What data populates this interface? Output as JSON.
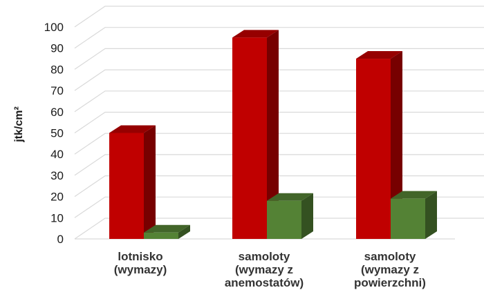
{
  "chart_data": {
    "type": "bar",
    "style": "3d-clustered-column",
    "categories": [
      [
        "lotnisko",
        "(wymazy)"
      ],
      [
        "samoloty",
        "(wymazy z",
        "anemostatów)"
      ],
      [
        "samoloty",
        "(wymazy z",
        "powierzchni)"
      ]
    ],
    "series": [
      {
        "values": [
          50,
          95,
          85
        ],
        "color": "#c00000"
      },
      {
        "values": [
          3,
          18,
          19
        ],
        "color": "#548235"
      }
    ],
    "ylabel": "jtk/cm²",
    "ylim": [
      0,
      100
    ],
    "yticks": [
      0,
      10,
      20,
      30,
      40,
      50,
      60,
      70,
      80,
      90,
      100
    ],
    "grid": true,
    "legend": "none"
  }
}
